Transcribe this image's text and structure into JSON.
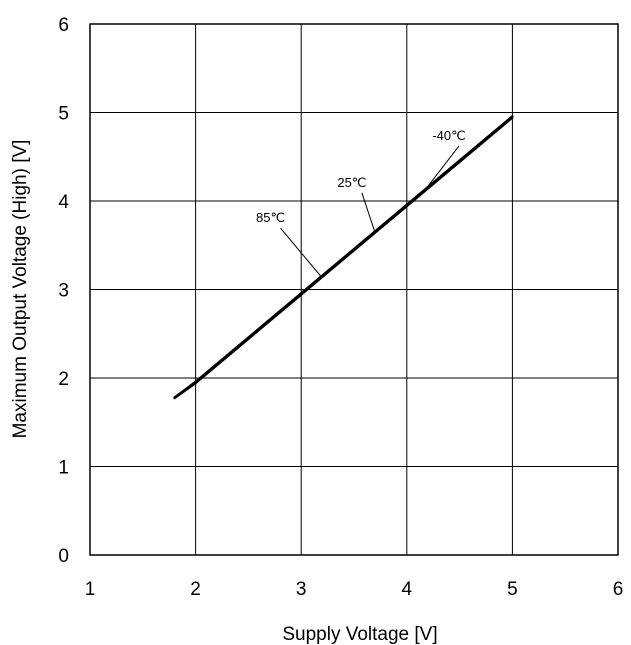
{
  "chart_data": {
    "type": "line",
    "title": "",
    "xlabel": "Supply Voltage [V]",
    "ylabel": "Maximum Output Voltage (High) [V]",
    "xlim": [
      1,
      6
    ],
    "ylim": [
      0,
      6
    ],
    "x_ticks": [
      "1",
      "2",
      "3",
      "4",
      "5",
      "6"
    ],
    "y_ticks": [
      "0",
      "1",
      "2",
      "3",
      "4",
      "5",
      "6"
    ],
    "grid": true,
    "line_color": "#000000",
    "series": [
      {
        "label": "-40℃",
        "x": [
          1.8,
          2.0,
          2.5,
          3.0,
          3.5,
          4.0,
          4.5,
          5.0
        ],
        "y": [
          1.78,
          1.96,
          2.46,
          2.96,
          3.46,
          3.96,
          4.46,
          4.96
        ]
      },
      {
        "label": "25℃",
        "x": [
          1.8,
          2.0,
          2.5,
          3.0,
          3.5,
          4.0,
          4.5,
          5.0
        ],
        "y": [
          1.78,
          1.95,
          2.45,
          2.95,
          3.45,
          3.95,
          4.45,
          4.95
        ]
      },
      {
        "label": "85℃",
        "x": [
          1.8,
          2.0,
          2.5,
          3.0,
          3.5,
          4.0,
          4.5,
          5.0
        ],
        "y": [
          1.77,
          1.94,
          2.44,
          2.94,
          3.44,
          3.94,
          4.44,
          4.94
        ]
      }
    ],
    "annotations": [
      {
        "text": "-40℃",
        "series": 0,
        "label_at": [
          4.4,
          4.69
        ],
        "point_at": [
          4.15,
          4.09
        ]
      },
      {
        "text": "25℃",
        "series": 1,
        "label_at": [
          3.48,
          4.16
        ],
        "point_at": [
          3.7,
          3.64
        ]
      },
      {
        "text": "85℃",
        "series": 2,
        "label_at": [
          2.71,
          3.76
        ],
        "point_at": [
          3.2,
          3.13
        ]
      }
    ]
  }
}
